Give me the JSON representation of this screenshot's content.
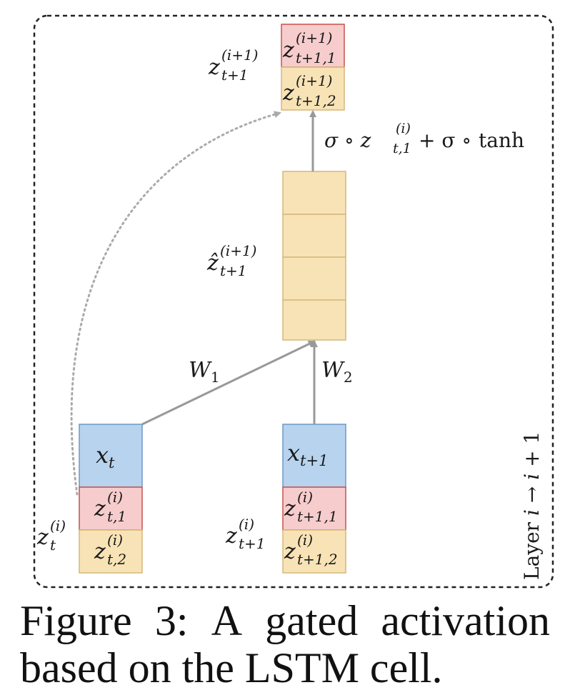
{
  "diagram": {
    "input_t": "x",
    "input_t_sub": "t",
    "input_t1": "x",
    "input_t1_sub": "t+1",
    "z_t_label": "z",
    "z_t_sup": "(i)",
    "z_t_sub": "t",
    "z_t1_label": "z",
    "z_t1_sup": "(i)",
    "z_t1_sub": "t+1",
    "cell_t_1_sub": "t,1",
    "cell_t_2_sub": "t,2",
    "cell_t1_1_sub": "t+1,1",
    "cell_t1_2_sub": "t+1,2",
    "cell_sup": "(i)",
    "w1": "W",
    "w1_sub": "1",
    "w2": "W",
    "w2_sub": "2",
    "zhat_label": "ẑ",
    "zhat_sup": "(i+1)",
    "zhat_sub": "t+1",
    "out_label": "z",
    "out_sup": "(i+1)",
    "out_sub": "t+1",
    "out_cell1_sub": "t+1,1",
    "out_cell2_sub": "t+1,2",
    "out_cell_sup": "(i+1)",
    "gate_sigma1": "σ ∘ z",
    "gate_sup": "(i)",
    "gate_sub": "t,1",
    "gate_rest": "+ σ ∘ ",
    "gate_tanh": "tanh",
    "layer_text": "Layer ",
    "layer_i": "i",
    "layer_arrow": " → ",
    "layer_i2": "i",
    "layer_plus": " + 1"
  },
  "caption": {
    "w1": "Figure",
    "w2": "3:",
    "w3": "A",
    "w4": "gated",
    "w5": "activation",
    "line2": "based on the LSTM cell."
  },
  "colors": {
    "blue": "#b7d3ee",
    "blue_border": "#6c98c6",
    "red": "#f7cccc",
    "red_border": "#c9524d",
    "tan": "#f8e3b6",
    "tan_border": "#d6b77a",
    "arrow": "#999999"
  }
}
